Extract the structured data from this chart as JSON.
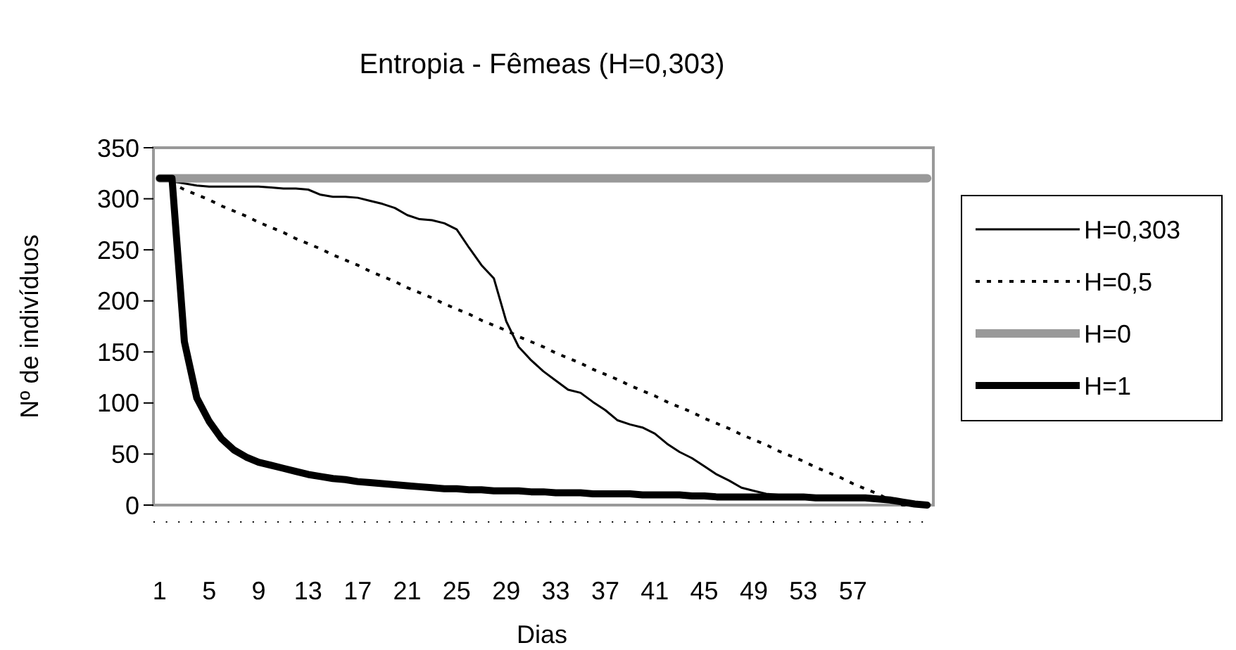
{
  "chart_data": {
    "type": "line",
    "title": "Entropia - Fêmeas (H=0,303)",
    "xlabel": "Dias",
    "ylabel": "Nº de indivíduos",
    "categories": [
      "1",
      null,
      null,
      null,
      "5",
      null,
      null,
      null,
      "9",
      null,
      null,
      null,
      "13",
      null,
      null,
      null,
      "17",
      null,
      null,
      null,
      "21",
      null,
      null,
      null,
      "25",
      null,
      null,
      null,
      "29",
      null,
      null,
      null,
      "33",
      null,
      null,
      null,
      "37",
      null,
      null,
      null,
      "41",
      null,
      null,
      null,
      "45",
      null,
      null,
      null,
      "49",
      null,
      null,
      null,
      "53",
      null,
      null,
      null,
      "57",
      null,
      null,
      null,
      null,
      null,
      null
    ],
    "ylim": [
      0,
      350
    ],
    "yticks": [
      0,
      50,
      100,
      150,
      200,
      250,
      300,
      350
    ],
    "grid": false,
    "legend": "right",
    "series": [
      {
        "name": "H=0,303",
        "color": "#000000",
        "line_style": "solid",
        "values": [
          320,
          317,
          315,
          313,
          312,
          312,
          312,
          312,
          312,
          311,
          310,
          310,
          309,
          304,
          302,
          302,
          301,
          298,
          295,
          291,
          284,
          280,
          279,
          276,
          270,
          252,
          235,
          222,
          180,
          155,
          142,
          131,
          122,
          113,
          110,
          101,
          93,
          83,
          79,
          76,
          70,
          60,
          52,
          46,
          38,
          30,
          24,
          17,
          14,
          11,
          10,
          9,
          9,
          8,
          8,
          8,
          8,
          7,
          6,
          5,
          3,
          1,
          0
        ]
      },
      {
        "name": "H=0,5",
        "color": "#000000",
        "line_style": "dotted",
        "values": [
          320,
          315,
          309,
          304,
          299,
          293,
          288,
          283,
          277,
          272,
          267,
          261,
          256,
          251,
          245,
          240,
          235,
          229,
          224,
          219,
          213,
          208,
          203,
          197,
          192,
          187,
          181,
          176,
          171,
          165,
          160,
          155,
          149,
          144,
          139,
          133,
          128,
          123,
          117,
          112,
          107,
          101,
          96,
          91,
          85,
          80,
          75,
          69,
          64,
          59,
          53,
          48,
          43,
          37,
          32,
          27,
          21,
          16,
          11,
          5,
          0,
          0,
          0
        ]
      },
      {
        "name": "H=0",
        "color": "#999999",
        "line_style": "solid",
        "values": [
          320,
          320,
          320,
          320,
          320,
          320,
          320,
          320,
          320,
          320,
          320,
          320,
          320,
          320,
          320,
          320,
          320,
          320,
          320,
          320,
          320,
          320,
          320,
          320,
          320,
          320,
          320,
          320,
          320,
          320,
          320,
          320,
          320,
          320,
          320,
          320,
          320,
          320,
          320,
          320,
          320,
          320,
          320,
          320,
          320,
          320,
          320,
          320,
          320,
          320,
          320,
          320,
          320,
          320,
          320,
          320,
          320,
          320,
          320,
          320,
          320,
          320,
          320
        ]
      },
      {
        "name": "H=1",
        "color": "#000000",
        "line_style": "solid",
        "values": [
          320,
          320,
          160,
          105,
          82,
          65,
          54,
          47,
          42,
          39,
          36,
          33,
          30,
          28,
          26,
          25,
          23,
          22,
          21,
          20,
          19,
          18,
          17,
          16,
          16,
          15,
          15,
          14,
          14,
          14,
          13,
          13,
          12,
          12,
          12,
          11,
          11,
          11,
          11,
          10,
          10,
          10,
          10,
          9,
          9,
          8,
          8,
          8,
          8,
          8,
          8,
          8,
          8,
          7,
          7,
          7,
          7,
          7,
          6,
          5,
          3,
          1,
          0
        ]
      }
    ]
  }
}
